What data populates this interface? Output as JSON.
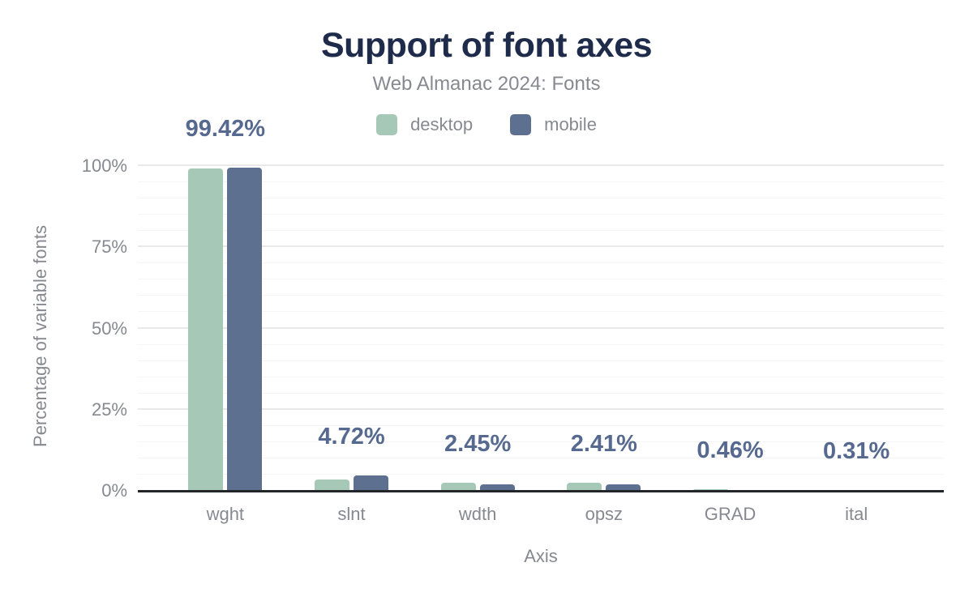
{
  "header": {
    "title": "Support of font axes",
    "subtitle": "Web Almanac 2024: Fonts"
  },
  "legend": [
    {
      "name": "desktop",
      "label": "desktop",
      "color": "#a6c9b7"
    },
    {
      "name": "mobile",
      "label": "mobile",
      "color": "#5e7090"
    }
  ],
  "colors": {
    "background": "#ffffff",
    "title": "#1f2b4a",
    "muted_text": "#86898f",
    "value_label": "#56698f",
    "axis_line": "#232629",
    "grid_minor": "#f5f5f5",
    "grid_major": "#e9e9e9",
    "desktop_bar": "#a6c9b7",
    "mobile_bar": "#5e7090"
  },
  "chart_data": {
    "type": "bar",
    "title": "Support of font axes",
    "subtitle": "Web Almanac 2024: Fonts",
    "categories": [
      "wght",
      "slnt",
      "wdth",
      "opsz",
      "GRAD",
      "ital"
    ],
    "series": [
      {
        "name": "desktop",
        "values": [
          99.2,
          3.6,
          2.45,
          2.41,
          0.46,
          0.31
        ]
      },
      {
        "name": "mobile",
        "values": [
          99.42,
          4.72,
          2.0,
          1.95,
          0.12,
          0.2
        ]
      }
    ],
    "value_labels": [
      "99.42%",
      "4.72%",
      "2.45%",
      "2.41%",
      "0.46%",
      "0.31%"
    ],
    "xlabel": "Axis",
    "ylabel": "Percentage of variable fonts",
    "y_ticks": [
      {
        "pct": 0,
        "label": "0%"
      },
      {
        "pct": 25,
        "label": "25%"
      },
      {
        "pct": 50,
        "label": "50%"
      },
      {
        "pct": 75,
        "label": "75%"
      },
      {
        "pct": 100,
        "label": "100%"
      }
    ],
    "ylim": [
      0,
      100
    ],
    "grid": "minor every 5%, major every 25%",
    "legend_position": "top-center"
  }
}
